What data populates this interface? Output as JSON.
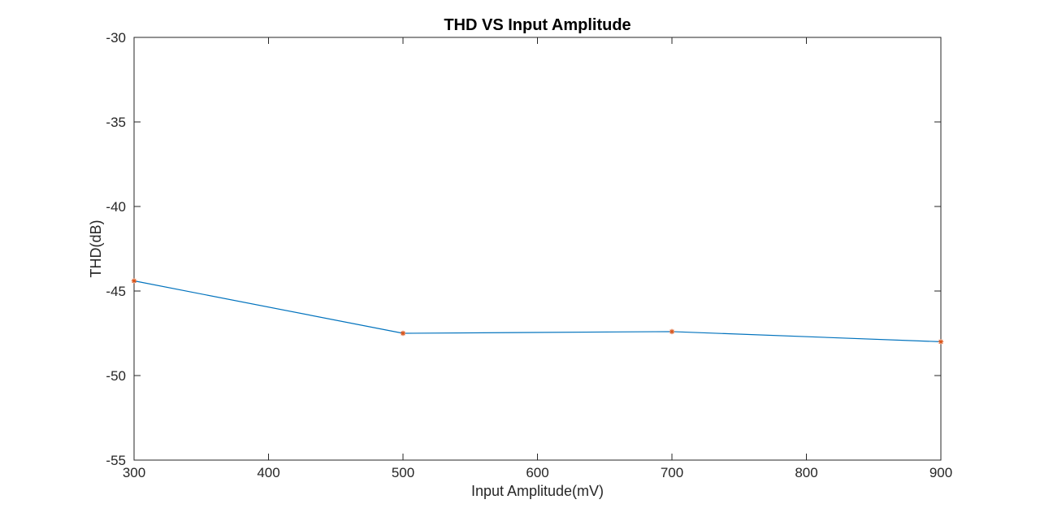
{
  "chart_data": {
    "type": "line",
    "title": "THD VS Input Amplitude",
    "xlabel": "Input Amplitude(mV)",
    "ylabel": "THD(dB)",
    "xlim": [
      300,
      900
    ],
    "ylim": [
      -55,
      -30
    ],
    "xticks": [
      300,
      400,
      500,
      600,
      700,
      800,
      900
    ],
    "yticks": [
      -55,
      -50,
      -45,
      -40,
      -35,
      -30
    ],
    "grid": false,
    "series": [
      {
        "x": [
          300,
          500,
          700,
          900
        ],
        "values": [
          -44.4,
          -47.5,
          -47.4,
          -48.0
        ],
        "line_color": "#0072BD",
        "marker": "asterisk",
        "marker_color": "#D95319"
      }
    ]
  }
}
